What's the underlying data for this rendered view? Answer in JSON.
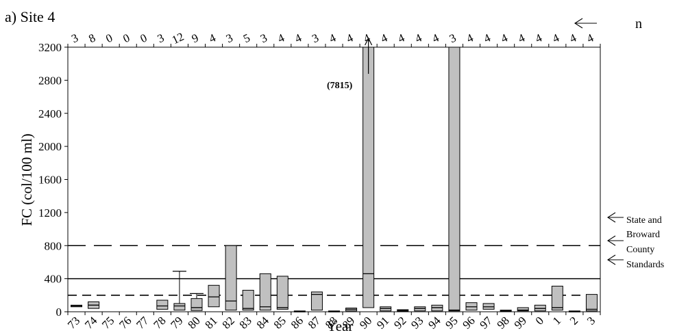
{
  "chart_data": {
    "type": "box",
    "panel_label": "a) Site 4",
    "xlabel": "Year",
    "ylabel": "FC (col/100 ml)",
    "n_label": "n",
    "ylim": [
      0,
      3200
    ],
    "yticks": [
      0,
      400,
      800,
      1200,
      1600,
      2000,
      2400,
      2800,
      3200
    ],
    "categories": [
      "73",
      "74",
      "75",
      "76",
      "77",
      "78",
      "79",
      "80",
      "81",
      "82",
      "83",
      "84",
      "85",
      "86",
      "87",
      "88",
      "89",
      "90",
      "91",
      "92",
      "93",
      "94",
      "95",
      "96",
      "97",
      "98",
      "99",
      "0",
      "1",
      "2",
      "3"
    ],
    "n": [
      "3",
      "8",
      "0",
      "0",
      "0",
      "3",
      "12",
      "9",
      "4",
      "3",
      "5",
      "3",
      "4",
      "4",
      "3",
      "4",
      "4",
      "4",
      "4",
      "4",
      "4",
      "4",
      "3",
      "4",
      "4",
      "4",
      "4",
      "4",
      "4",
      "4",
      "4"
    ],
    "boxes": [
      {
        "q1": 60,
        "median": 70,
        "q3": 80
      },
      {
        "q1": 40,
        "median": 80,
        "q3": 120
      },
      null,
      null,
      null,
      {
        "q1": 30,
        "median": 70,
        "q3": 140
      },
      {
        "q1": 20,
        "median": 70,
        "q3": 100,
        "whisker_high": 490
      },
      {
        "q1": 15,
        "median": 50,
        "q3": 160,
        "whisker_high": 220
      },
      {
        "q1": 60,
        "median": 180,
        "q3": 320
      },
      {
        "q1": 20,
        "median": 130,
        "q3": 800
      },
      {
        "q1": 20,
        "median": 40,
        "q3": 260
      },
      {
        "q1": 20,
        "median": 60,
        "q3": 460
      },
      {
        "q1": 30,
        "median": 50,
        "q3": 430
      },
      {
        "q1": 0,
        "median": 5,
        "q3": 10
      },
      {
        "q1": 20,
        "median": 210,
        "q3": 240
      },
      {
        "q1": 0,
        "median": 5,
        "q3": 10
      },
      {
        "q1": 10,
        "median": 30,
        "q3": 45
      },
      {
        "q1": 50,
        "median": 460,
        "q3": 3200,
        "whisker_high": 3320
      },
      {
        "q1": 10,
        "median": 40,
        "q3": 60
      },
      {
        "q1": 5,
        "median": 15,
        "q3": 25
      },
      {
        "q1": 10,
        "median": 40,
        "q3": 60
      },
      {
        "q1": 10,
        "median": 50,
        "q3": 80
      },
      {
        "q1": 10,
        "median": 20,
        "q3": 3200
      },
      {
        "q1": 20,
        "median": 60,
        "q3": 110
      },
      {
        "q1": 30,
        "median": 60,
        "q3": 100
      },
      {
        "q1": 0,
        "median": 10,
        "q3": 20
      },
      {
        "q1": 10,
        "median": 20,
        "q3": 50
      },
      {
        "q1": 10,
        "median": 40,
        "q3": 80
      },
      {
        "q1": 20,
        "median": 50,
        "q3": 310
      },
      {
        "q1": 0,
        "median": 5,
        "q3": 10
      },
      {
        "q1": 10,
        "median": 30,
        "q3": 210
      }
    ],
    "reference_lines": [
      {
        "value": 800,
        "style": "long-dash"
      },
      {
        "value": 400,
        "style": "solid"
      },
      {
        "value": 200,
        "style": "short-dash"
      }
    ],
    "annotations": {
      "outlier_label": "(7815)",
      "outlier_category": "90",
      "standards_lines": [
        "State and",
        "Broward",
        "County",
        "Standards"
      ]
    },
    "colors": {
      "box_fill": "#c0c0c0",
      "stroke": "#000000",
      "background": "#ffffff"
    }
  }
}
